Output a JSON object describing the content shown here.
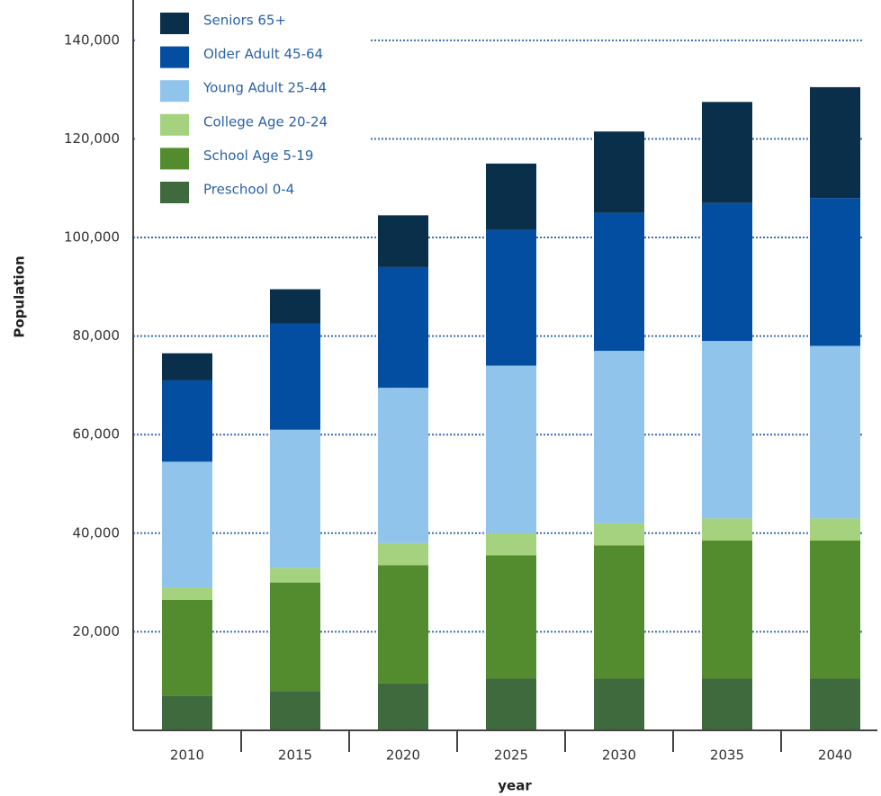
{
  "chart_data": {
    "type": "stacked_bar",
    "x_label": "year",
    "y_label": "Population",
    "categories": [
      "2010",
      "2015",
      "2020",
      "2025",
      "2030",
      "2035",
      "2040"
    ],
    "series": [
      {
        "name": "Preschool 0-4",
        "color": "#3f6a3d",
        "values": [
          7000,
          8000,
          9500,
          10500,
          10500,
          10500,
          10500
        ]
      },
      {
        "name": "School Age 5-19",
        "color": "#538c2e",
        "values": [
          19500,
          22000,
          24000,
          25000,
          27000,
          28000,
          28000
        ]
      },
      {
        "name": "College Age 20-24",
        "color": "#a4d27e",
        "values": [
          2500,
          3000,
          4500,
          4500,
          4500,
          4500,
          4500
        ]
      },
      {
        "name": "Young Adult 25-44",
        "color": "#90c4ea",
        "values": [
          25500,
          28000,
          31500,
          34000,
          35000,
          36000,
          35000
        ]
      },
      {
        "name": "Older Adult 45-64",
        "color": "#044ea2",
        "values": [
          16500,
          21500,
          24500,
          27500,
          28000,
          28000,
          30000
        ]
      },
      {
        "name": "Seniors 65+",
        "color": "#0a2f4a",
        "values": [
          5500,
          7000,
          10500,
          13500,
          16500,
          20500,
          22500
        ]
      }
    ],
    "ylim": [
      0,
      148000
    ],
    "yticks": [
      {
        "value": 20000,
        "label": "20,000"
      },
      {
        "value": 40000,
        "label": "40,000"
      },
      {
        "value": 60000,
        "label": "60,000"
      },
      {
        "value": 80000,
        "label": "80,000"
      },
      {
        "value": 100000,
        "label": "100,000"
      },
      {
        "value": 120000,
        "label": "120,000"
      },
      {
        "value": 140000,
        "label": "140,000"
      }
    ],
    "grid": true,
    "legend": "upper left"
  }
}
